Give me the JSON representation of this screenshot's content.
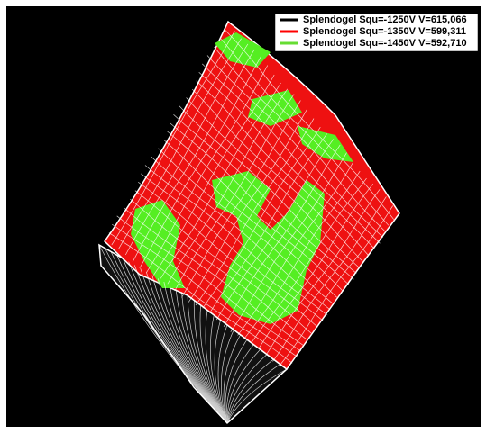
{
  "legend": {
    "entries": [
      {
        "label": "Splendogel Squ=-1250V V=615,066",
        "color": "#000000"
      },
      {
        "label": "Splendogel Squ=-1350V V=599,311",
        "color": "#ff0000"
      },
      {
        "label": "Splendogel Squ=-1450V V=592,710",
        "color": "#66dd33"
      }
    ]
  }
}
